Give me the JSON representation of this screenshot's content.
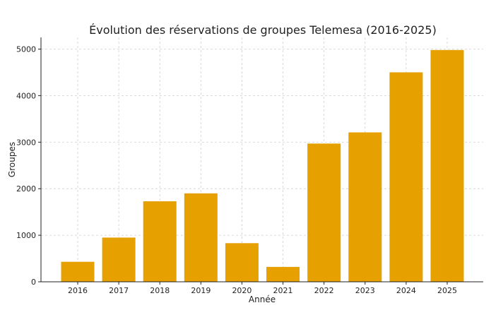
{
  "chart_data": {
    "type": "bar",
    "title": "Évolution des réservations de groupes Telemesa (2016-2025)",
    "xlabel": "Année",
    "ylabel": "Groupes",
    "categories": [
      "2016",
      "2017",
      "2018",
      "2019",
      "2020",
      "2021",
      "2022",
      "2023",
      "2024",
      "2025"
    ],
    "values": [
      430,
      950,
      1730,
      1900,
      830,
      320,
      2970,
      3210,
      4500,
      4980
    ],
    "ylim": [
      0,
      5250
    ],
    "yticks": [
      0,
      1000,
      2000,
      3000,
      4000,
      5000
    ],
    "grid": true,
    "bar_color": "#E6A000"
  }
}
